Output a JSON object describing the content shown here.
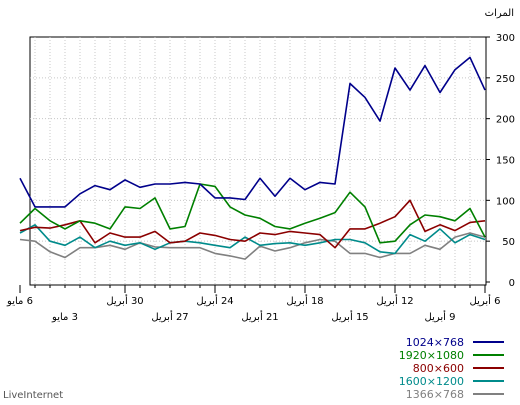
{
  "chart_data": {
    "type": "line",
    "ylabel": "المرات",
    "ylim": [
      0,
      300
    ],
    "yticks": [
      0,
      50,
      100,
      150,
      200,
      250,
      300
    ],
    "grid": true,
    "x_direction": "right-to-left",
    "x_count": 32,
    "x_upper_labels": [
      {
        "index": 0,
        "label": "6 أبريل"
      },
      {
        "index": 6,
        "label": "12 أبريل"
      },
      {
        "index": 12,
        "label": "18 أبريل"
      },
      {
        "index": 18,
        "label": "24 أبريل"
      },
      {
        "index": 24,
        "label": "30 أبريل"
      },
      {
        "index": 31,
        "label": "6 مايو"
      }
    ],
    "x_lower_labels": [
      {
        "index": 3,
        "label": "9 أبريل"
      },
      {
        "index": 9,
        "label": "15 أبريل"
      },
      {
        "index": 15,
        "label": "21 أبريل"
      },
      {
        "index": 21,
        "label": "27 أبريل"
      },
      {
        "index": 28,
        "label": "3 مايو"
      }
    ],
    "series": [
      {
        "name": "1024×768",
        "color": "#00008b",
        "values": [
          235,
          275,
          260,
          232,
          265,
          235,
          262,
          197,
          226,
          243,
          120,
          122,
          113,
          127,
          105,
          127,
          101,
          103,
          103,
          120,
          122,
          120,
          120,
          116,
          125,
          113,
          118,
          108,
          92,
          92,
          92,
          127
        ]
      },
      {
        "name": "1920×1080",
        "color": "#008000",
        "values": [
          55,
          90,
          75,
          80,
          82,
          70,
          50,
          48,
          92,
          110,
          85,
          78,
          72,
          65,
          68,
          78,
          82,
          92,
          117,
          120,
          68,
          65,
          103,
          90,
          92,
          65,
          72,
          75,
          65,
          75,
          90,
          72
        ]
      },
      {
        "name": "800×600",
        "color": "#8b0000",
        "values": [
          75,
          73,
          63,
          70,
          62,
          100,
          80,
          72,
          65,
          65,
          42,
          58,
          60,
          62,
          58,
          60,
          50,
          52,
          57,
          60,
          50,
          48,
          62,
          55,
          55,
          60,
          48,
          75,
          70,
          66,
          67,
          63
        ]
      },
      {
        "name": "1600×1200",
        "color": "#008b8b",
        "values": [
          52,
          58,
          48,
          65,
          50,
          58,
          35,
          37,
          48,
          52,
          52,
          48,
          45,
          48,
          47,
          45,
          55,
          42,
          45,
          48,
          50,
          48,
          40,
          48,
          45,
          50,
          42,
          55,
          45,
          50,
          70,
          60
        ]
      },
      {
        "name": "1366×768",
        "color": "#808080",
        "values": [
          55,
          60,
          55,
          40,
          45,
          35,
          35,
          30,
          35,
          35,
          50,
          52,
          48,
          42,
          38,
          44,
          28,
          32,
          35,
          42,
          42,
          42,
          43,
          48,
          40,
          45,
          42,
          42,
          30,
          37,
          50,
          52
        ]
      }
    ]
  },
  "footer": "LiveInternet"
}
